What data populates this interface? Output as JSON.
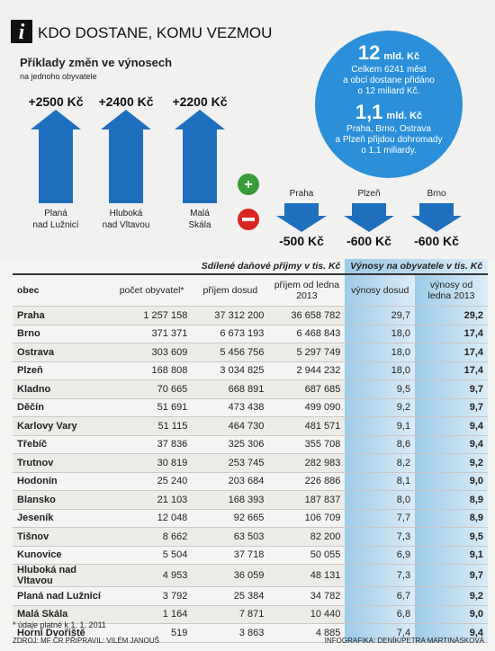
{
  "header": {
    "icon": "i",
    "title": "KDO DOSTANE, KOMU VEZMOU",
    "subtitle": "Příklady změn ve výnosech",
    "note": "na jednoho obyvatele"
  },
  "gains": [
    {
      "value": "+2500 Kč",
      "label": [
        "Planá",
        "nad Lužnicí"
      ]
    },
    {
      "value": "+2400 Kč",
      "label": [
        "Hluboká",
        "nad Vltavou"
      ]
    },
    {
      "value": "+2200 Kč",
      "label": [
        "Malá",
        "Skála"
      ]
    }
  ],
  "losses": [
    {
      "label": "Praha",
      "value": "-500 Kč"
    },
    {
      "label": "Plzeň",
      "value": "-600 Kč"
    },
    {
      "label": "Brno",
      "value": "-600 Kč"
    }
  ],
  "circle": {
    "first": {
      "big": "12",
      "unit": "mld. Kč",
      "lines": [
        "Celkem 6241 měst",
        "a obcí dostane přidáno",
        "o 12 miliard Kč."
      ]
    },
    "second": {
      "big": "1,1",
      "unit": "mld. Kč",
      "lines": [
        "Praha, Brno, Ostrava",
        "a Plzeň přijdou dohromady",
        "o 1,1 miliardy."
      ]
    }
  },
  "table": {
    "group_headers": [
      "Sdílené daňové příjmy v tis. Kč",
      "Výnosy na obyvatele v tis. Kč"
    ],
    "columns": [
      "obec",
      "počet obyvatel*",
      "příjem dosud",
      "příjem od ledna 2013",
      "výnosy dosud",
      "výnosy od ledna 2013"
    ],
    "rows": [
      [
        "Praha",
        "1 257 158",
        "37 312 200",
        "36 658 782",
        "29,7",
        "29,2"
      ],
      [
        "Brno",
        "371 371",
        "6 673 193",
        "6 468 843",
        "18,0",
        "17,4"
      ],
      [
        "Ostrava",
        "303 609",
        "5 456 756",
        "5 297 749",
        "18,0",
        "17,4"
      ],
      [
        "Plzeň",
        "168 808",
        "3 034 825",
        "2 944 232",
        "18,0",
        "17,4"
      ],
      [
        "Kladno",
        "70 665",
        "668 891",
        "687 685",
        "9,5",
        "9,7"
      ],
      [
        "Děčín",
        "51 691",
        "473 438",
        "499 090",
        "9,2",
        "9,7"
      ],
      [
        "Karlovy Vary",
        "51 115",
        "464 730",
        "481 571",
        "9,1",
        "9,4"
      ],
      [
        "Třebíč",
        "37 836",
        "325 306",
        "355 708",
        "8,6",
        "9,4"
      ],
      [
        "Trutnov",
        "30 819",
        "253 745",
        "282 983",
        "8,2",
        "9,2"
      ],
      [
        "Hodonín",
        "25 240",
        "203 684",
        "226 886",
        "8,1",
        "9,0"
      ],
      [
        "Blansko",
        "21 103",
        "168 393",
        "187 837",
        "8,0",
        "8,9"
      ],
      [
        "Jeseník",
        "12 048",
        "92 665",
        "106 709",
        "7,7",
        "8,9"
      ],
      [
        "Tišnov",
        "8 662",
        "63 503",
        "82 200",
        "7,3",
        "9,5"
      ],
      [
        "Kunovice",
        "5 504",
        "37 718",
        "50 055",
        "6,9",
        "9,1"
      ],
      [
        "Hluboká nad Vltavou",
        "4 953",
        "36 059",
        "48 131",
        "7,3",
        "9,7"
      ],
      [
        "Planá nad Lužnicí",
        "3 792",
        "25 384",
        "34 782",
        "6,7",
        "9,2"
      ],
      [
        "Malá Skála",
        "1 164",
        "7 871",
        "10 440",
        "6,8",
        "9,0"
      ],
      [
        "Horní Dvořiště",
        "519",
        "3 863",
        "4 885",
        "7,4",
        "9,4"
      ]
    ]
  },
  "footer": {
    "note": "* údaje platné k 1. 1. 2011",
    "source": "ZDROJ: MF ČR PŘIPRAVIL: VILÉM JANOUŠ",
    "credit": "INFOGRAFIKA: DENÍK/PETRA MARTINÁSKOVÁ"
  }
}
